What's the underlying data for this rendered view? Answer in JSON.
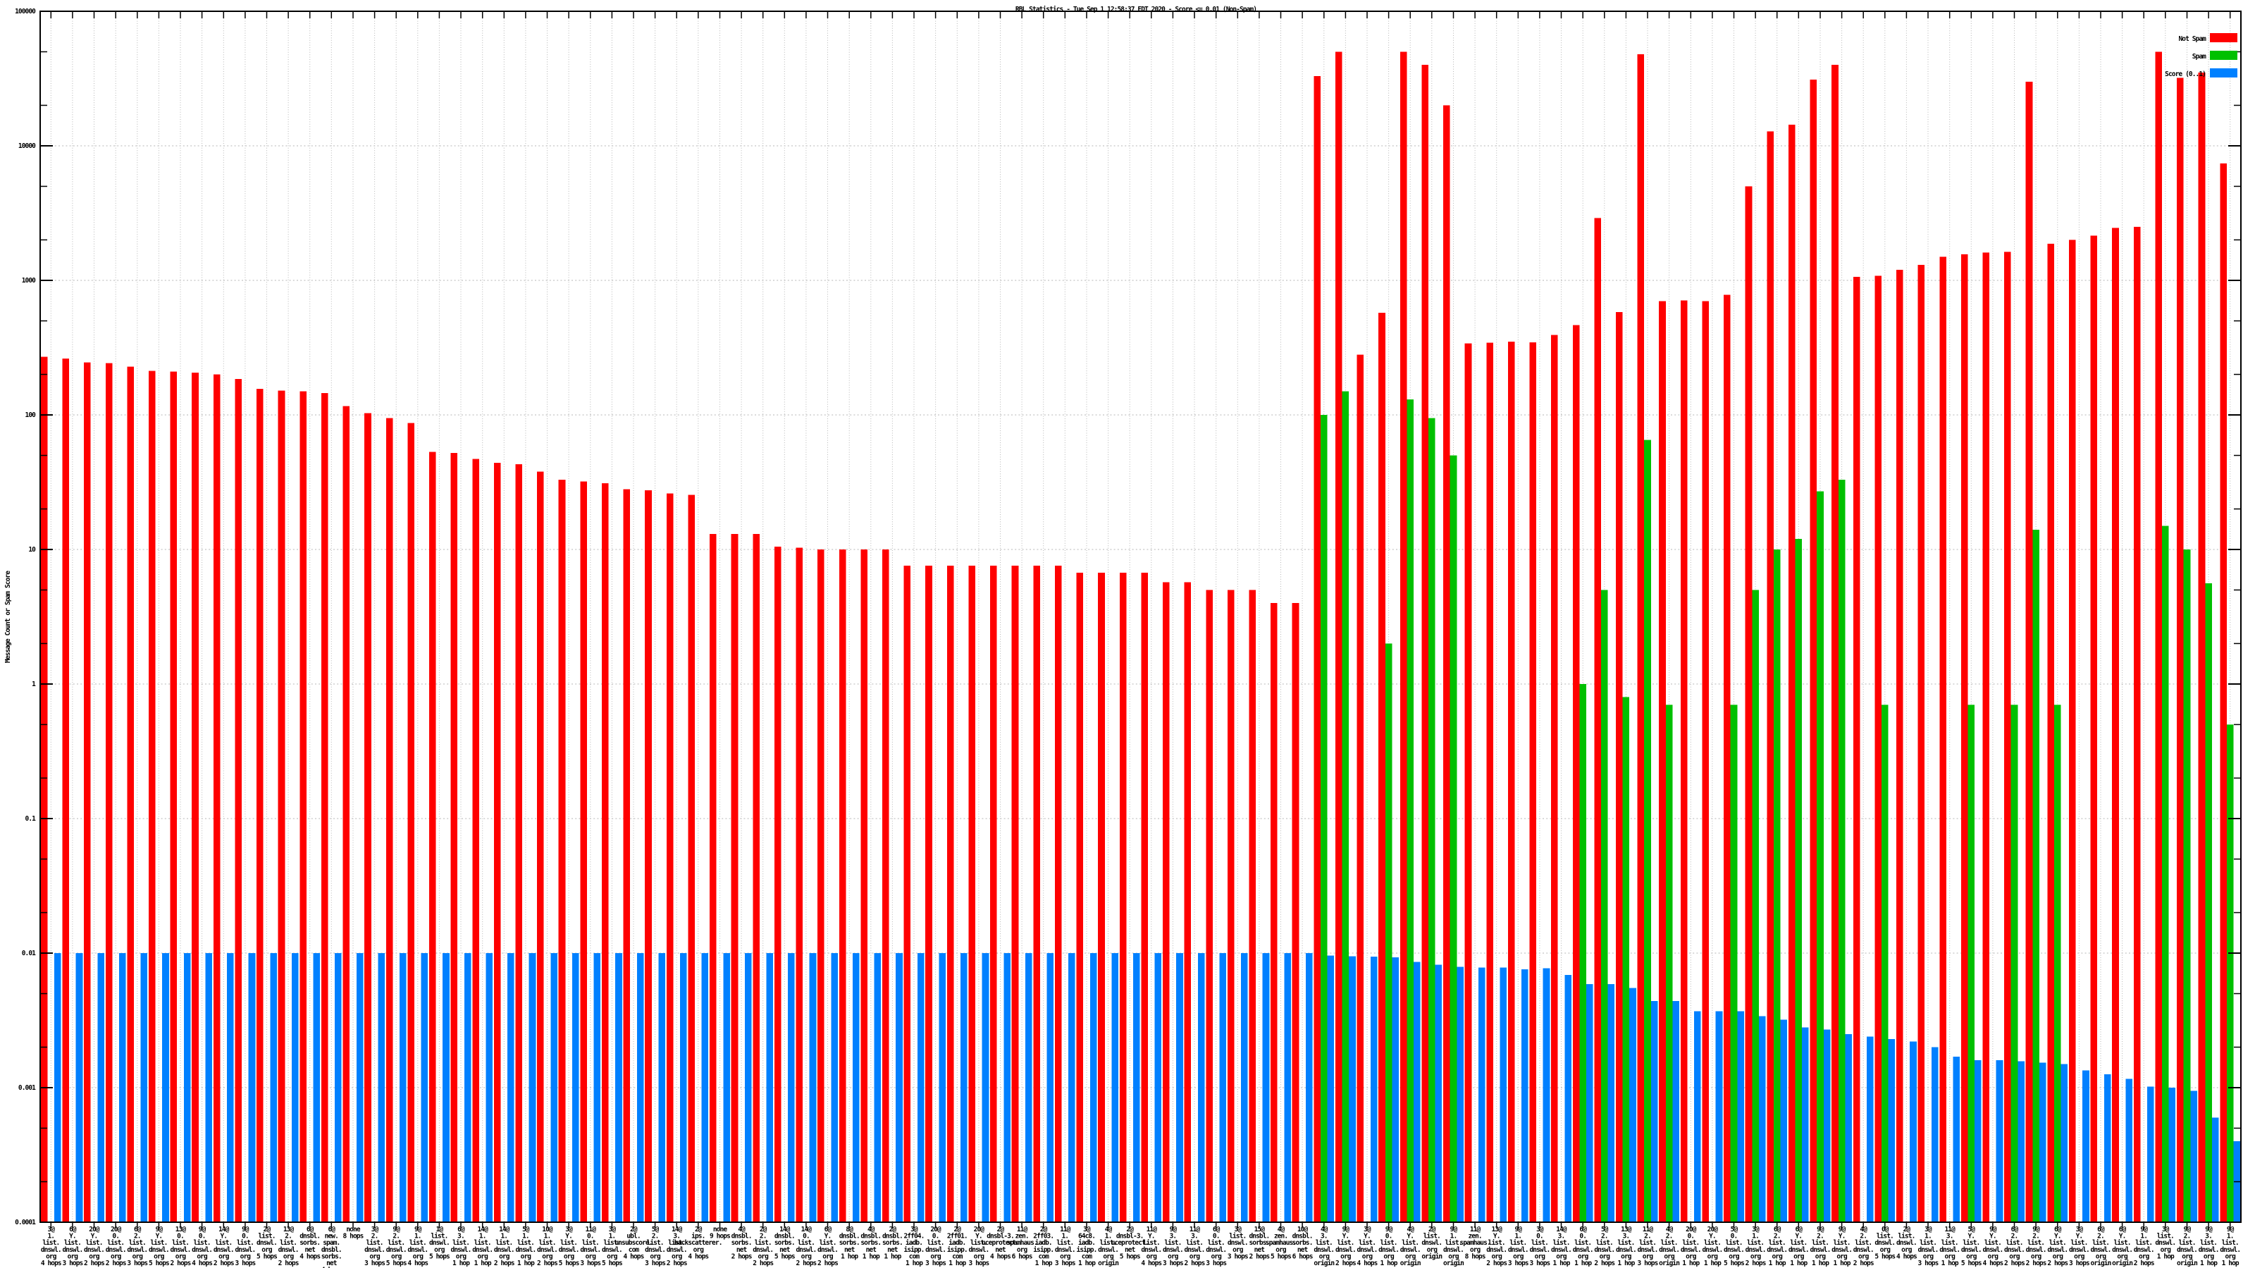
{
  "title": "RBL Statistics - Tue Sep  1 12:58:37 EDT 2020 - Score <= 0.01 (Non-Spam)",
  "ylabel": "Message Count or Spam Score",
  "legend": [
    {
      "label": "Not Spam",
      "color": "#ff0000"
    },
    {
      "label": "Spam",
      "color": "#00c000"
    },
    {
      "label": "Score (0..1)",
      "color": "#0080ff"
    }
  ],
  "axis": {
    "y_ticks": [
      "100000",
      "10000",
      "1000",
      "100",
      "10",
      "1",
      "0.1",
      "0.01",
      "0.001",
      "0.0001"
    ],
    "ylim": [
      0.0001,
      100000
    ],
    "log": true,
    "grid": true
  },
  "chart_data": {
    "type": "bar",
    "ylog": true,
    "categories": [
      "3@1.list.dnswl.org 4 hops",
      "6@Y.list.dnswl.org 3 hops",
      "20@Y.list.dnswl.org 2 hops",
      "20@0.list.dnswl.org 2 hops",
      "6@2.list.dnswl.org 3 hops",
      "9@Y.list.dnswl.org 5 hops",
      "13@0.list.dnswl.org 2 hops",
      "9@0.list.dnswl.org 4 hops",
      "14@Y.list.dnswl.org 2 hops",
      "9@0.list.dnswl.org 3 hops",
      "2@list.dnswl.org 5 hops",
      "13@2.list.dnswl.org 2 hops",
      "6@dnsbl.sorbs.net 4 hops",
      "6@new.spam.dnsbl.sorbs.net 4 hops",
      "none 8 hops",
      "3@2.list.dnswl.org 3 hops",
      "9@2.list.dnswl.org 5 hops",
      "9@1.list.dnswl.org 4 hops",
      "1@list.dnswl.org 5 hops",
      "6@3.list.dnswl.org 1 hop",
      "14@1.list.dnswl.org 1 hop",
      "14@1.list.dnswl.org 2 hops",
      "5@1.list.dnswl.org 1 hop",
      "10@1.list.dnswl.org 2 hops",
      "3@Y.list.dnswl.org 5 hops",
      "11@0.list.dnswl.org 3 hops",
      "3@1.list.dnswl.org 5 hops",
      "2@ubl.unsubscore.com 4 hops",
      "5@2.list.dnswl.org 3 hops",
      "14@3.list.dnswl.org 2 hops",
      "2@ips.backscatterer.org 4 hops",
      "none 9 hops",
      "4@dnsbl.sorbs.net 2 hops",
      "2@2.list.dnswl.org 2 hops",
      "14@dnsbl.sorbs.net 5 hops",
      "14@0.list.dnswl.org 2 hops",
      "6@Y.list.dnswl.org 2 hops",
      "8@dnsbl.sorbs.net 1 hop",
      "4@dnsbl.sorbs.net 1 hop",
      "2@dnsbl.sorbs.net 1 hop",
      "3@2ff04.iadb.isipp.com 1 hop",
      "20@0.list.dnswl.org 3 hops",
      "2@2ff01.iadb.isipp.com 1 hop",
      "20@Y.list.dnswl.org 3 hops",
      "2@dnsbl-3.uceprotect.net 4 hops",
      "11@zen.spamhaus.org 6 hops",
      "2@2ff03.iadb.isipp.com 1 hop",
      "11@1.list.dnswl.org 3 hops",
      "3@64c8.iadb.isipp.com 1 hop",
      "4@1.list.dnswl.org origin",
      "2@dnsbl-3.uceprotect.net 5 hops",
      "11@Y.list.dnswl.org 4 hops",
      "9@3.list.dnswl.org 3 hops",
      "11@3.list.dnswl.org 2 hops",
      "6@0.list.dnswl.org 3 hops",
      "3@list.dnswl.org 3 hops",
      "15@dnsbl.sorbs.net 2 hops",
      "4@zen.spamhaus.org 5 hops",
      "10@dnsbl.sorbs.net 6 hops",
      "4@3.list.dnswl.org origin",
      "9@Y.list.dnswl.org 2 hops",
      "3@Y.list.dnswl.org 4 hops",
      "9@0.list.dnswl.org 1 hop",
      "4@Y.list.dnswl.org origin",
      "2@list.dnswl.org origin",
      "9@1.list.dnswl.org origin",
      "11@zen.spamhaus.org 8 hops",
      "13@Y.list.dnswl.org 2 hops",
      "9@1.list.dnswl.org 3 hops",
      "3@0.list.dnswl.org 3 hops",
      "14@3.list.dnswl.org 1 hop",
      "6@0.list.dnswl.org 1 hop",
      "5@2.list.dnswl.org 2 hops",
      "13@3.list.dnswl.org 1 hop",
      "11@2.list.dnswl.org 3 hops",
      "4@2.list.dnswl.org origin",
      "20@0.list.dnswl.org 1 hop",
      "20@Y.list.dnswl.org 1 hop",
      "5@0.list.dnswl.org 5 hops",
      "3@1.list.dnswl.org 2 hops",
      "6@2.list.dnswl.org 1 hop",
      "6@Y.list.dnswl.org 1 hop",
      "9@2.list.dnswl.org 1 hop",
      "9@Y.list.dnswl.org 1 hop",
      "4@2.list.dnswl.org 2 hops",
      "0@list.dnswl.org 5 hops",
      "2@list.dnswl.org 4 hops",
      "3@1.list.dnswl.org 3 hops",
      "11@3.list.dnswl.org 1 hop",
      "5@Y.list.dnswl.org 5 hops",
      "9@Y.list.dnswl.org 4 hops",
      "6@2.list.dnswl.org 2 hops",
      "9@2.list.dnswl.org 2 hops",
      "6@Y.list.dnswl.org 2 hops",
      "3@Y.list.dnswl.org 3 hops",
      "6@2.list.dnswl.org origin",
      "6@Y.list.dnswl.org origin",
      "9@1.list.dnswl.org 2 hops",
      "3@list.dnswl.org 1 hop",
      "9@2.list.dnswl.org origin",
      "9@3.list.dnswl.org 1 hop",
      "9@1.list.dnswl.org 1 hop"
    ],
    "series": [
      {
        "name": "Not Spam",
        "color": "#ff0000",
        "values": [
          270,
          262,
          245,
          243,
          228,
          212,
          210,
          206,
          200,
          185,
          156,
          152,
          150,
          145,
          116,
          103,
          95,
          87,
          53,
          52,
          47,
          44,
          43,
          38,
          33,
          32,
          31,
          28,
          27.5,
          26,
          25.5,
          13,
          13,
          13,
          10.5,
          10.3,
          10,
          10,
          10,
          10,
          7.6,
          7.6,
          7.6,
          7.6,
          7.6,
          7.6,
          7.6,
          7.6,
          6.7,
          6.7,
          6.7,
          6.7,
          5.7,
          5.7,
          5,
          5,
          5,
          4,
          4,
          33000,
          50000,
          280,
          575,
          50000,
          40000,
          20000,
          340,
          345,
          350,
          347,
          394,
          465,
          2900,
          580,
          48000,
          700,
          710,
          700,
          780,
          5000,
          12800,
          14400,
          31000,
          40000,
          1060,
          1080,
          1200,
          1300,
          1500,
          1560,
          1610,
          1630,
          30000,
          1870,
          2000,
          2150,
          2460,
          2500,
          50000,
          32000,
          35000,
          7400
        ]
      },
      {
        "name": "Spam",
        "color": "#00c000",
        "values": [
          0,
          0,
          0,
          0,
          0,
          0,
          0,
          0,
          0,
          0,
          0,
          0,
          0,
          0,
          0,
          0,
          0,
          0,
          0,
          0,
          0,
          0,
          0,
          0,
          0,
          0,
          0,
          0,
          0,
          0,
          0,
          0,
          0,
          0,
          0,
          0,
          0,
          0,
          0,
          0,
          0,
          0,
          0,
          0,
          0,
          0,
          0,
          0,
          0,
          0,
          0,
          0,
          0,
          0,
          0,
          0,
          0,
          0,
          0,
          100,
          150,
          0,
          2,
          130,
          95,
          50,
          0,
          0,
          0,
          0,
          0,
          1,
          5,
          0.8,
          65,
          0.7,
          0,
          0,
          0.7,
          5,
          10,
          12,
          27,
          33,
          0,
          0.7,
          0,
          0,
          0,
          0.7,
          0,
          0.7,
          14,
          0.7,
          0,
          0,
          0,
          0,
          15,
          10,
          5.6,
          0.5
        ]
      },
      {
        "name": "Score (0..1)",
        "color": "#0080ff",
        "values": [
          0.01,
          0.01,
          0.01,
          0.01,
          0.01,
          0.01,
          0.01,
          0.01,
          0.01,
          0.01,
          0.01,
          0.01,
          0.01,
          0.01,
          0.01,
          0.01,
          0.01,
          0.01,
          0.01,
          0.01,
          0.01,
          0.01,
          0.01,
          0.01,
          0.01,
          0.01,
          0.01,
          0.01,
          0.01,
          0.01,
          0.01,
          0.01,
          0.01,
          0.01,
          0.01,
          0.01,
          0.01,
          0.01,
          0.01,
          0.01,
          0.01,
          0.01,
          0.01,
          0.01,
          0.01,
          0.01,
          0.01,
          0.01,
          0.01,
          0.01,
          0.01,
          0.01,
          0.01,
          0.01,
          0.01,
          0.01,
          0.01,
          0.01,
          0.01,
          0.0096,
          0.0095,
          0.0094,
          0.0093,
          0.0086,
          0.0082,
          0.0079,
          0.0078,
          0.0078,
          0.0076,
          0.0077,
          0.0069,
          0.0059,
          0.0059,
          0.0055,
          0.0044,
          0.0044,
          0.0037,
          0.0037,
          0.0037,
          0.0034,
          0.0032,
          0.0028,
          0.0027,
          0.0025,
          0.0024,
          0.0023,
          0.0022,
          0.002,
          0.0017,
          0.0016,
          0.0016,
          0.00157,
          0.00153,
          0.0015,
          0.00134,
          0.00126,
          0.00116,
          0.00102,
          0.001,
          0.00095,
          0.0006,
          0.0004
        ]
      }
    ]
  }
}
